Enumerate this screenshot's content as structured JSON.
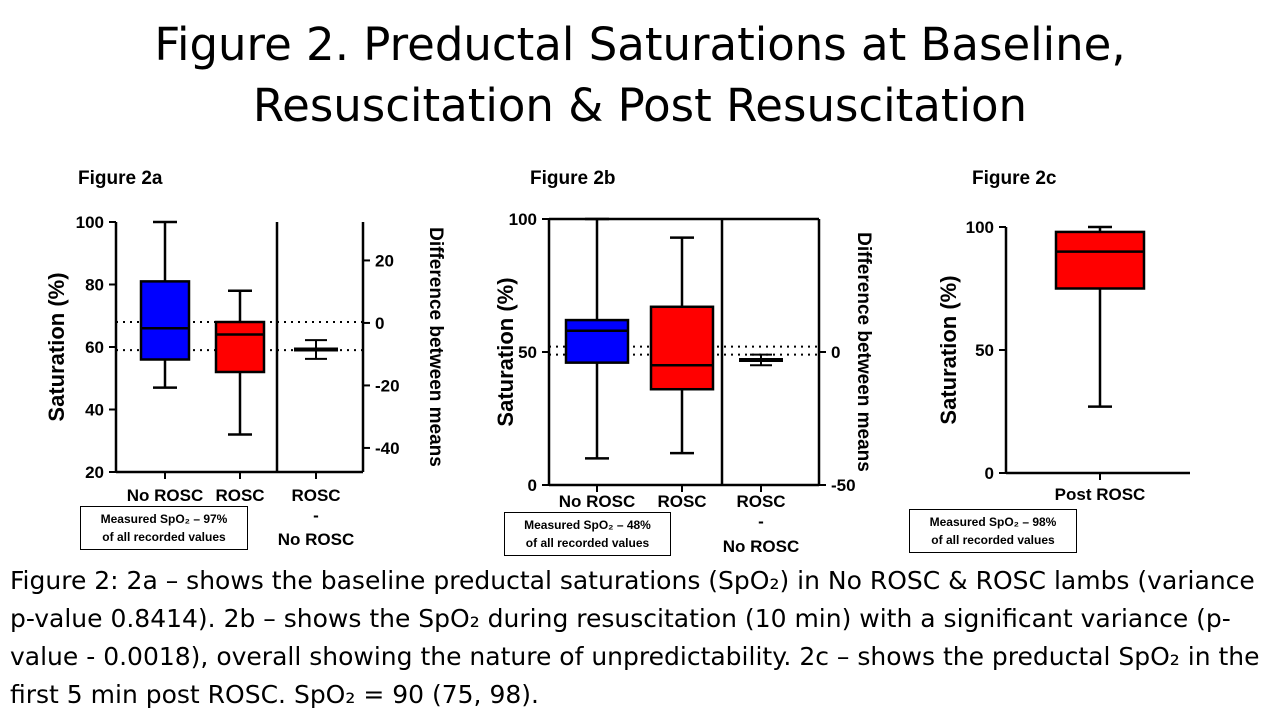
{
  "title": "Figure 2. Preductal Saturations at Baseline, Resuscitation & Post Resuscitation",
  "panels": {
    "a": {
      "label": "Figure 2a",
      "note_line1": "Measured SpO₂ – 97%",
      "note_line2": "of all recorded values"
    },
    "b": {
      "label": "Figure 2b",
      "note_line1": "Measured SpO₂ – 48%",
      "note_line2": "of all recorded values"
    },
    "c": {
      "label": "Figure 2c",
      "note_line1": "Measured SpO₂ – 98%",
      "note_line2": "of all recorded values"
    }
  },
  "caption": "Figure 2: 2a – shows the baseline preductal saturations (SpO₂) in No ROSC & ROSC lambs (variance p-value 0.8414). 2b – shows the SpO₂ during resuscitation (10 min) with a significant variance (p-value - 0.0018), overall showing the nature of unpredictability. 2c – shows the preductal SpO₂ in the first 5 min post ROSC. SpO₂ = 90 (75, 98).",
  "colors": {
    "no_rosc": "#0000ff",
    "rosc": "#ff0000",
    "axis": "#000000"
  },
  "chart_data": [
    {
      "type": "box",
      "ylabel": "Saturation (%)",
      "y2label": "Difference between means",
      "ylim": [
        20,
        100
      ],
      "yticks": [
        20,
        40,
        60,
        80,
        100
      ],
      "y2lim": [
        -47.7,
        32.3
      ],
      "y2ticks": [
        -40,
        -20,
        0,
        20
      ],
      "categories": [
        "No ROSC",
        "ROSC"
      ],
      "boxes": [
        {
          "name": "No ROSC",
          "min": 47,
          "q1": 56,
          "median": 66,
          "q3": 81,
          "max": 100,
          "color": "#0000ff"
        },
        {
          "name": "ROSC",
          "min": 32,
          "q1": 52,
          "median": 64,
          "q3": 68,
          "max": 78,
          "color": "#ff0000"
        }
      ],
      "difference": {
        "label_line1": "ROSC",
        "label_line2": "-",
        "label_line3": "No ROSC",
        "mean": -8.5,
        "ci": [
          -11.5,
          -5.5
        ]
      },
      "reference_lines": [
        68,
        59
      ]
    },
    {
      "type": "box",
      "ylabel": "Saturation (%)",
      "y2label": "Difference between means",
      "ylim": [
        0,
        100
      ],
      "yticks": [
        0,
        50,
        100
      ],
      "y2lim": [
        -50,
        50
      ],
      "y2ticks": [
        -50,
        0
      ],
      "categories": [
        "No ROSC",
        "ROSC"
      ],
      "boxes": [
        {
          "name": "No ROSC",
          "min": 10,
          "q1": 46,
          "median": 58,
          "q3": 62,
          "max": 100,
          "color": "#0000ff"
        },
        {
          "name": "ROSC",
          "min": 12,
          "q1": 36,
          "median": 45,
          "q3": 67,
          "max": 93,
          "color": "#ff0000"
        }
      ],
      "difference": {
        "label_line1": "ROSC",
        "label_line2": "-",
        "label_line3": "No ROSC",
        "mean": -3,
        "ci": [
          -5,
          -1
        ]
      },
      "reference_lines": [
        52,
        49
      ]
    },
    {
      "type": "box",
      "ylabel": "Saturation  (%)",
      "ylim": [
        0,
        100
      ],
      "yticks": [
        0,
        50,
        100
      ],
      "categories": [
        "Post ROSC"
      ],
      "boxes": [
        {
          "name": "Post ROSC",
          "min": 27,
          "q1": 75,
          "median": 90,
          "q3": 98,
          "max": 100,
          "color": "#ff0000"
        }
      ]
    }
  ]
}
